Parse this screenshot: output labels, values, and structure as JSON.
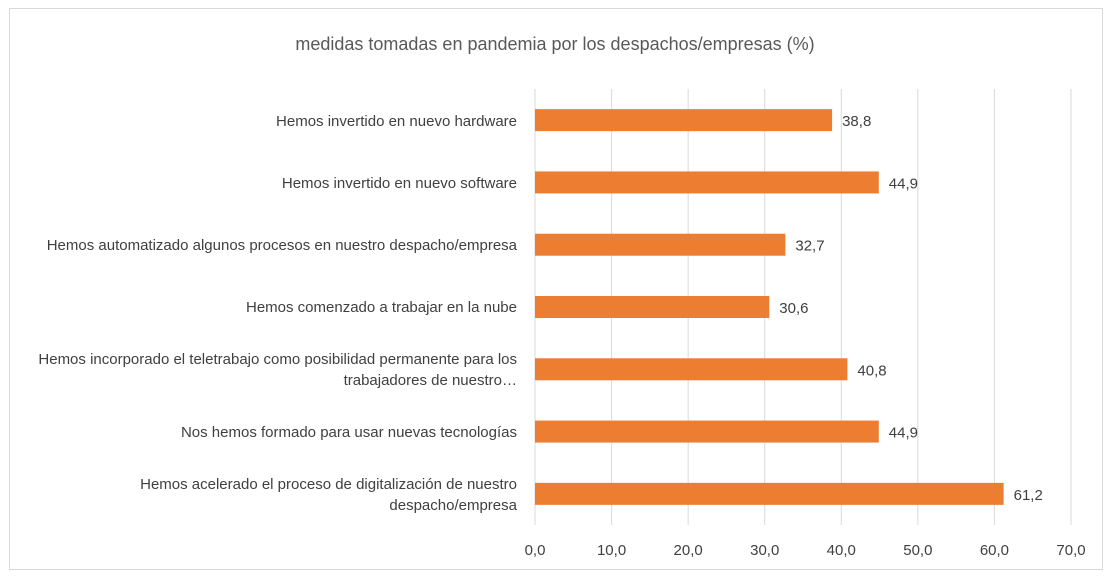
{
  "chart_data": {
    "type": "barh",
    "title": "medidas tomadas en pandemia por los despachos/empresas (%)",
    "categories": [
      "Hemos invertido en nuevo hardware",
      "Hemos invertido en nuevo software",
      "Hemos automatizado algunos procesos en nuestro despacho/empresa",
      "Hemos comenzado a trabajar en la nube",
      "Hemos incorporado el teletrabajo como posibilidad permanente para los trabajadores de nuestro…",
      "Nos hemos formado para usar nuevas tecnologías",
      "Hemos acelerado el proceso de digitalización de nuestro despacho/empresa"
    ],
    "values": [
      38.8,
      44.9,
      32.7,
      30.6,
      40.8,
      44.9,
      61.2
    ],
    "value_labels": [
      "38,8",
      "44,9",
      "32,7",
      "30,6",
      "40,8",
      "44,9",
      "61,2"
    ],
    "color": "#ed7d31",
    "xlim": [
      0,
      70
    ],
    "xticks": [
      {
        "value": 0,
        "label": "0,0"
      },
      {
        "value": 10,
        "label": "10,0"
      },
      {
        "value": 20,
        "label": "20,0"
      },
      {
        "value": 30,
        "label": "30,0"
      },
      {
        "value": 40,
        "label": "40,0"
      },
      {
        "value": 50,
        "label": "50,0"
      },
      {
        "value": 60,
        "label": "60,0"
      },
      {
        "value": 70,
        "label": "70,0"
      }
    ],
    "grid": true
  }
}
